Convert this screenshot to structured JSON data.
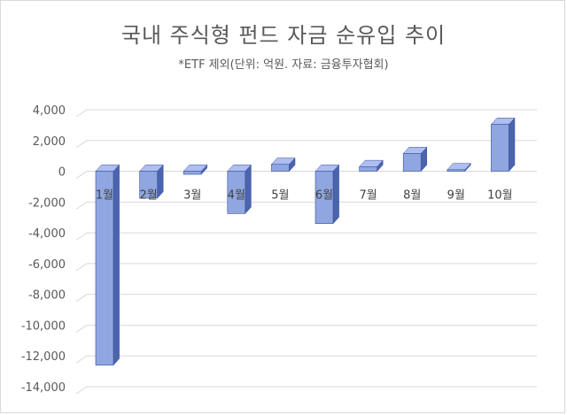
{
  "chart_data": {
    "type": "bar",
    "title": "국내 주식형 펀드 자금 순유입 추이",
    "subtitle": "*ETF 제외(단위: 억원. 자료: 금융투자협회)",
    "xlabel": "",
    "ylabel": "",
    "categories": [
      "1월",
      "2월",
      "3월",
      "4월",
      "5월",
      "6월",
      "7월",
      "8월",
      "9월",
      "10월"
    ],
    "values": [
      -12600,
      -1750,
      -200,
      -2750,
      450,
      -3400,
      300,
      1150,
      100,
      3050
    ],
    "ylim": [
      -14000,
      4000
    ],
    "yticks": [
      4000,
      2000,
      0,
      -2000,
      -4000,
      -6000,
      -8000,
      -10000,
      -12000,
      -14000
    ],
    "ytick_labels": [
      "4,000",
      "2,000",
      "0",
      "-2,000",
      "-4,000",
      "-6,000",
      "-8,000",
      "-10,000",
      "-12,000",
      "-14,000"
    ],
    "grid": true,
    "colors": {
      "bar_front": "#8fa6e0",
      "bar_side": "#4a64b0",
      "bar_top": "#aebef0",
      "grid": "#d9d9d9",
      "text": "#595959"
    }
  }
}
